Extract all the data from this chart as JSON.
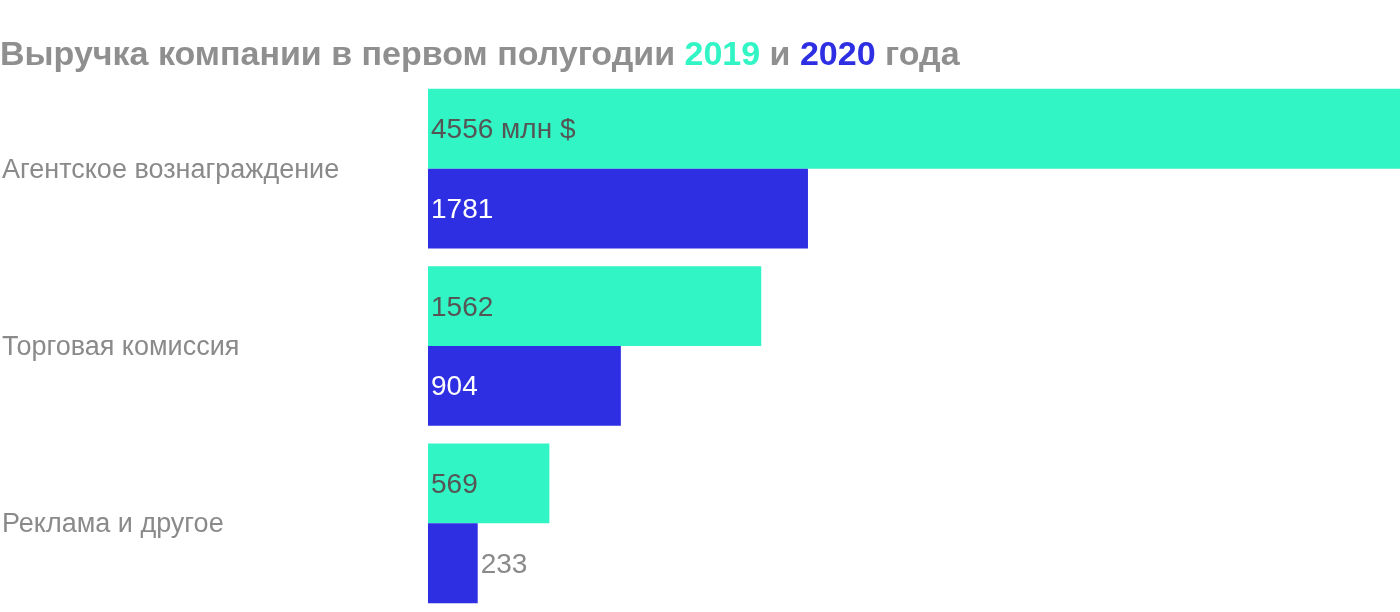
{
  "chart_data": {
    "type": "bar",
    "orientation": "horizontal",
    "title": "Выручка компании в первом полугодии 2019 и 2020 года",
    "categories": [
      "Агентское вознаграждение",
      "Торговая комиссия",
      "Реклама и другое"
    ],
    "series": [
      {
        "color": "#31f5c4",
        "values": [
          4556,
          1562,
          569
        ],
        "value_labels": [
          "4556 млн $",
          "1562",
          "569"
        ]
      },
      {
        "color": "#2e2fe3",
        "values": [
          1781,
          904,
          233
        ],
        "value_labels": [
          "1781",
          "904",
          "233"
        ]
      }
    ],
    "xlim": [
      0,
      4556
    ],
    "legend": false
  }
}
